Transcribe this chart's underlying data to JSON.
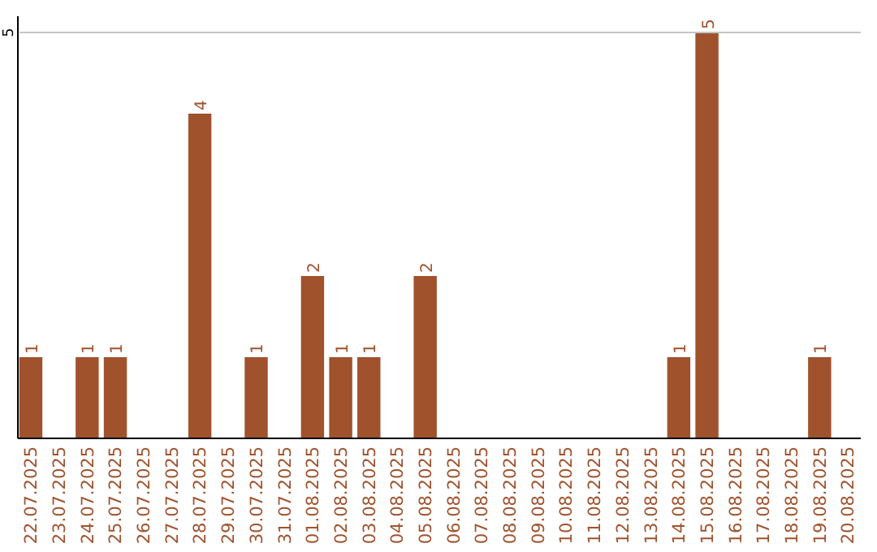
{
  "chart_data": {
    "type": "bar",
    "categories": [
      "22.07.2025",
      "23.07.2025",
      "24.07.2025",
      "25.07.2025",
      "26.07.2025",
      "27.07.2025",
      "28.07.2025",
      "29.07.2025",
      "30.07.2025",
      "31.07.2025",
      "01.08.2025",
      "02.08.2025",
      "03.08.2025",
      "04.08.2025",
      "05.08.2025",
      "06.08.2025",
      "07.08.2025",
      "08.08.2025",
      "09.08.2025",
      "10.08.2025",
      "11.08.2025",
      "12.08.2025",
      "13.08.2025",
      "14.08.2025",
      "15.08.2025",
      "16.08.2025",
      "17.08.2025",
      "18.08.2025",
      "19.08.2025",
      "20.08.2025"
    ],
    "values": [
      1,
      null,
      1,
      1,
      null,
      null,
      4,
      null,
      1,
      null,
      2,
      1,
      1,
      null,
      2,
      null,
      null,
      null,
      null,
      null,
      null,
      null,
      null,
      1,
      5,
      null,
      null,
      null,
      1,
      null
    ],
    "color": "#a0522d",
    "ylim": [
      0,
      5.2
    ],
    "yticks": [
      5
    ],
    "grid": "y",
    "data_labels": true
  }
}
